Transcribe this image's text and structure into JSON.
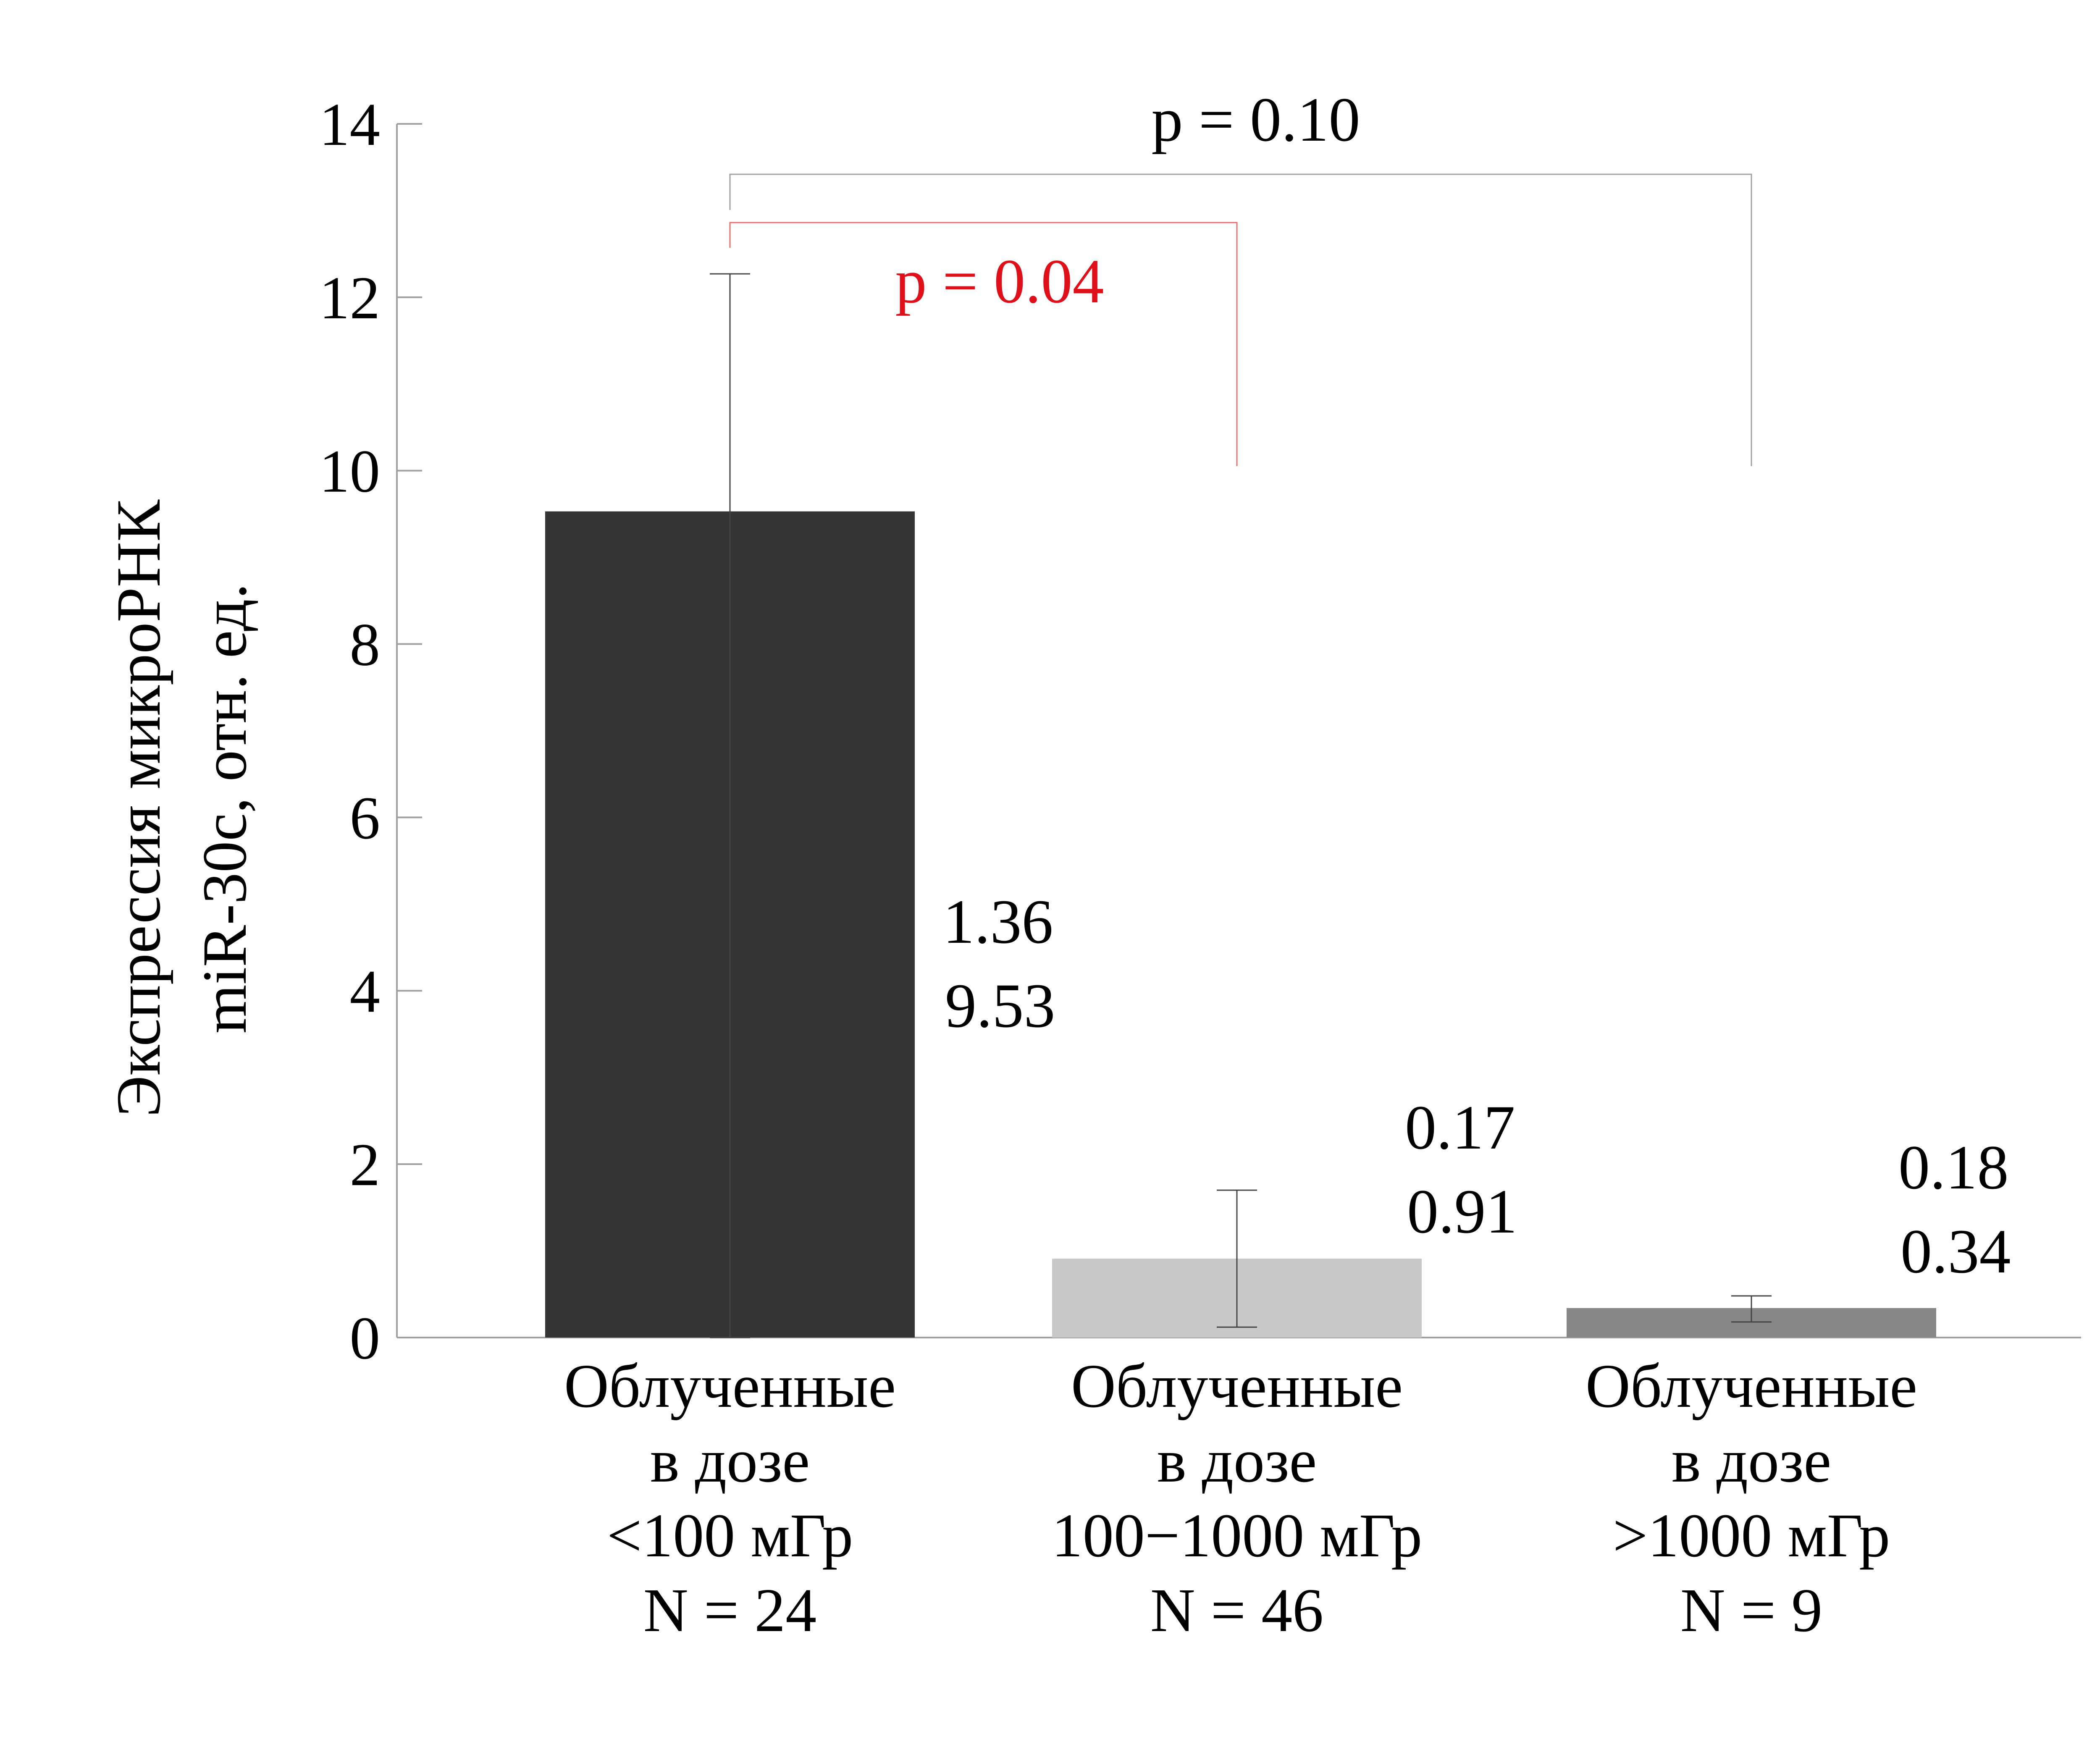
{
  "chart_data": {
    "type": "bar",
    "ylabel_lines": [
      "Экспрессия микроРНК",
      "miR-30c, отн. ед."
    ],
    "xlabel": "",
    "ylim": [
      0,
      14
    ],
    "yticks": [
      0,
      2,
      4,
      6,
      8,
      10,
      12,
      14
    ],
    "grid": false,
    "categories": [
      {
        "lines": [
          "Облученные",
          "в дозе",
          "<100 мГр",
          "N = 24"
        ]
      },
      {
        "lines": [
          "Облученные",
          "в дозе",
          "100−1000 мГр",
          "N = 46"
        ]
      },
      {
        "lines": [
          "Облученные",
          "в дозе",
          ">1000 мГр",
          "N = 9"
        ]
      }
    ],
    "values": [
      9.53,
      0.91,
      0.34
    ],
    "error_bars": [
      {
        "low": 0.0,
        "high": 12.27
      },
      {
        "low": 0.12,
        "high": 1.7
      },
      {
        "low": 0.18,
        "high": 0.48
      }
    ],
    "value_labels": [
      {
        "top": "1.36",
        "bottom": "9.53"
      },
      {
        "top": "0.17",
        "bottom": "0.91"
      },
      {
        "top": "0.18",
        "bottom": "0.34"
      }
    ],
    "bar_colors": [
      "#353535",
      "#c8c8c8",
      "#878787"
    ],
    "significance": [
      {
        "label": "p = 0.04",
        "from": 0,
        "to": 1,
        "color": "#e0101a"
      },
      {
        "label": "p = 0.10",
        "from": 0,
        "to": 2,
        "color": "#000000"
      }
    ]
  }
}
